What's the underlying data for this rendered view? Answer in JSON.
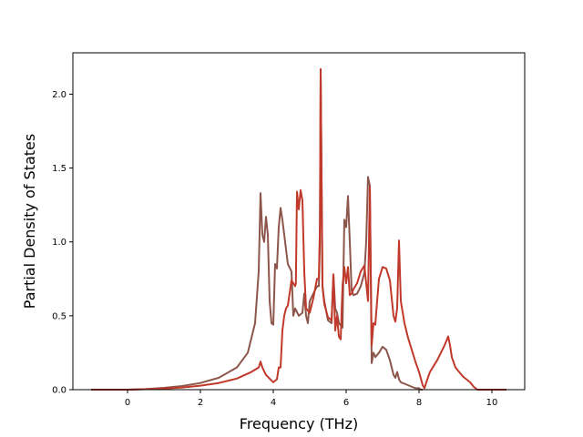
{
  "chart_data": {
    "type": "line",
    "title": "",
    "xlabel": "Frequency (THz)",
    "ylabel": "Partial Density of States",
    "xlim": [
      -1.5,
      10.9
    ],
    "ylim": [
      0,
      2.28
    ],
    "xticks": [
      0,
      2,
      4,
      6,
      8,
      10
    ],
    "yticks": [
      0.0,
      0.5,
      1.0,
      1.5,
      2.0
    ],
    "xtick_labels": [
      "0",
      "2",
      "4",
      "6",
      "8",
      "10"
    ],
    "ytick_labels": [
      "0.0",
      "0.5",
      "1.0",
      "1.5",
      "2.0"
    ],
    "grid": false,
    "legend": "none",
    "series": [
      {
        "color": "#c0392b",
        "x": [
          -1.0,
          0.0,
          0.5,
          1.0,
          1.5,
          2.0,
          2.5,
          3.0,
          3.4,
          3.6,
          3.65,
          3.7,
          3.8,
          4.0,
          4.1,
          4.15,
          4.2,
          4.25,
          4.3,
          4.35,
          4.4,
          4.5,
          4.6,
          4.62,
          4.65,
          4.7,
          4.75,
          4.8,
          4.85,
          4.9,
          5.0,
          5.1,
          5.2,
          5.25,
          5.28,
          5.3,
          5.35,
          5.4,
          5.5,
          5.6,
          5.65,
          5.7,
          5.75,
          5.8,
          5.85,
          5.9,
          5.95,
          6.0,
          6.05,
          6.1,
          6.15,
          6.2,
          6.3,
          6.4,
          6.5,
          6.6,
          6.65,
          6.7,
          6.75,
          6.8,
          6.85,
          6.9,
          7.0,
          7.1,
          7.2,
          7.3,
          7.35,
          7.4,
          7.45,
          7.5,
          7.6,
          7.7,
          7.8,
          7.9,
          8.0,
          8.1,
          8.15,
          8.2,
          8.3,
          8.5,
          8.7,
          8.8,
          8.85,
          8.9,
          9.0,
          9.2,
          9.4,
          9.5,
          9.6,
          10.0,
          10.4
        ],
        "y": [
          0.0,
          0.0,
          0.003,
          0.008,
          0.015,
          0.027,
          0.045,
          0.075,
          0.12,
          0.15,
          0.19,
          0.15,
          0.1,
          0.05,
          0.07,
          0.15,
          0.15,
          0.4,
          0.5,
          0.55,
          0.57,
          0.74,
          0.7,
          0.72,
          1.34,
          1.22,
          1.35,
          1.28,
          0.8,
          0.55,
          0.52,
          0.62,
          0.75,
          0.75,
          1.1,
          2.17,
          0.7,
          0.58,
          0.49,
          0.47,
          0.78,
          0.4,
          0.5,
          0.36,
          0.34,
          0.7,
          0.83,
          0.72,
          0.83,
          0.64,
          0.65,
          0.68,
          0.72,
          0.8,
          0.84,
          0.6,
          1.37,
          0.3,
          0.45,
          0.44,
          0.6,
          0.75,
          0.83,
          0.82,
          0.74,
          0.5,
          0.46,
          0.55,
          1.01,
          0.6,
          0.45,
          0.35,
          0.27,
          0.19,
          0.12,
          0.03,
          0.01,
          0.05,
          0.12,
          0.2,
          0.3,
          0.36,
          0.3,
          0.22,
          0.15,
          0.09,
          0.05,
          0.02,
          0.0,
          0.0,
          0.0
        ]
      },
      {
        "color": "#8c564b",
        "x": [
          -1.0,
          0.0,
          0.5,
          1.0,
          1.5,
          2.0,
          2.5,
          3.0,
          3.3,
          3.5,
          3.6,
          3.65,
          3.7,
          3.75,
          3.8,
          3.85,
          3.9,
          3.95,
          4.0,
          4.05,
          4.1,
          4.15,
          4.2,
          4.25,
          4.3,
          4.4,
          4.5,
          4.55,
          4.6,
          4.7,
          4.8,
          4.85,
          4.9,
          4.95,
          5.0,
          5.1,
          5.2,
          5.25,
          5.28,
          5.3,
          5.35,
          5.4,
          5.5,
          5.6,
          5.65,
          5.7,
          5.75,
          5.8,
          5.9,
          5.95,
          6.0,
          6.05,
          6.1,
          6.15,
          6.2,
          6.3,
          6.4,
          6.5,
          6.55,
          6.6,
          6.65,
          6.7,
          6.75,
          6.8,
          6.9,
          7.0,
          7.1,
          7.2,
          7.3,
          7.35,
          7.4,
          7.45,
          7.5,
          7.6,
          7.7,
          7.8,
          7.9,
          8.0,
          8.05,
          8.1
        ],
        "y": [
          0.0,
          0.0,
          0.004,
          0.012,
          0.025,
          0.045,
          0.08,
          0.15,
          0.25,
          0.45,
          0.8,
          1.33,
          1.05,
          1.0,
          1.17,
          1.05,
          0.6,
          0.45,
          0.44,
          0.85,
          0.82,
          1.1,
          1.23,
          1.15,
          1.05,
          0.85,
          0.8,
          0.5,
          0.55,
          0.5,
          0.52,
          0.65,
          0.5,
          0.45,
          0.6,
          0.65,
          0.7,
          0.7,
          1.0,
          2.17,
          0.7,
          0.6,
          0.47,
          0.45,
          0.78,
          0.55,
          0.52,
          0.45,
          0.42,
          1.15,
          1.1,
          1.31,
          1.0,
          0.67,
          0.64,
          0.65,
          0.7,
          0.79,
          1.0,
          1.44,
          1.38,
          0.18,
          0.25,
          0.22,
          0.25,
          0.29,
          0.27,
          0.2,
          0.1,
          0.08,
          0.12,
          0.07,
          0.05,
          0.04,
          0.03,
          0.02,
          0.01,
          0.01,
          0.0,
          0.0
        ]
      }
    ]
  }
}
